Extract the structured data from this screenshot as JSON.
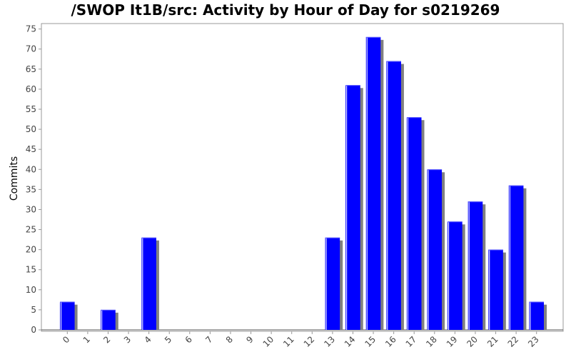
{
  "chart_data": {
    "type": "bar",
    "title": "/SWOP It1B/src: Activity by Hour of Day for s0219269",
    "xlabel": "",
    "ylabel": "Commits",
    "categories": [
      "0",
      "1",
      "2",
      "3",
      "4",
      "5",
      "6",
      "7",
      "8",
      "9",
      "10",
      "11",
      "12",
      "13",
      "14",
      "15",
      "16",
      "17",
      "18",
      "19",
      "20",
      "21",
      "22",
      "23"
    ],
    "values": [
      7,
      0,
      5,
      0,
      23,
      0,
      0,
      0,
      0,
      0,
      0,
      0,
      0,
      23,
      61,
      73,
      67,
      53,
      40,
      27,
      32,
      20,
      36,
      7
    ],
    "ylim": [
      0,
      76
    ],
    "yticks": [
      0,
      5,
      10,
      15,
      20,
      25,
      30,
      35,
      40,
      45,
      50,
      55,
      60,
      65,
      70,
      75
    ],
    "colors": {
      "bar": "#0000ff",
      "shadow": "#808080",
      "highlight": "#ffffff"
    }
  }
}
